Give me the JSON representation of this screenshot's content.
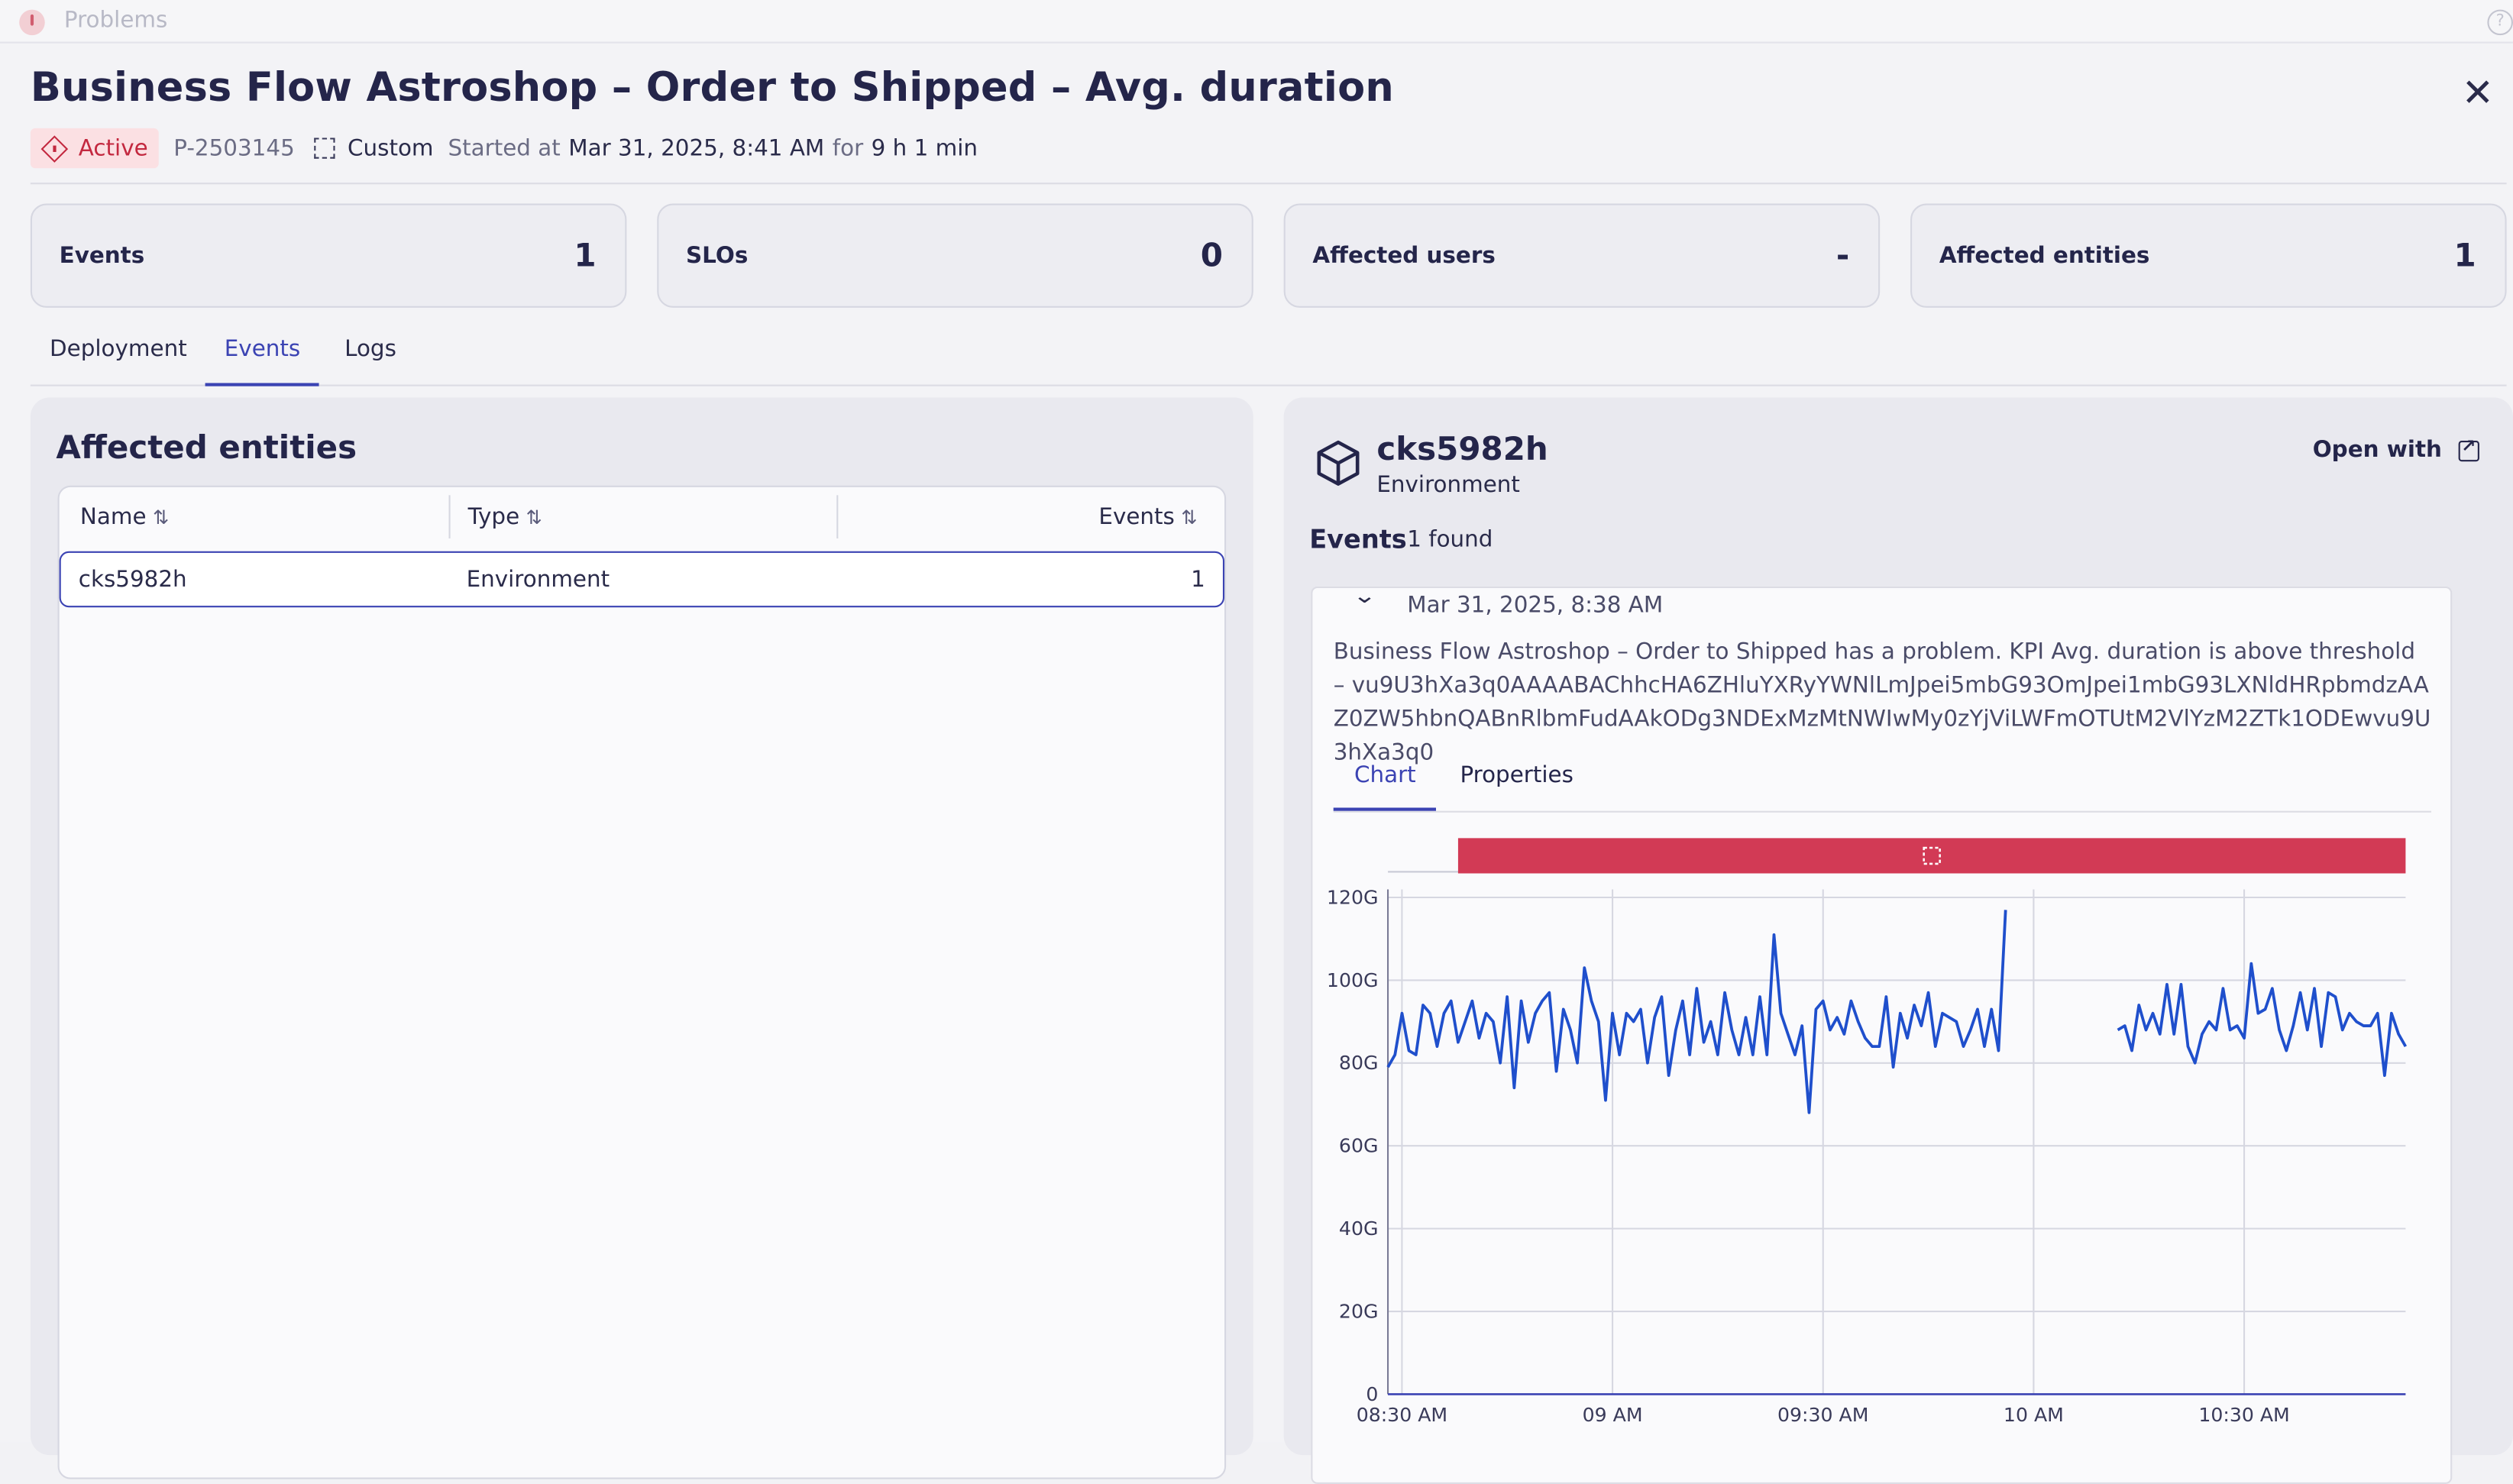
{
  "app": {
    "title": "Problems"
  },
  "problem": {
    "title": "Business Flow Astroshop – Order to Shipped – Avg. duration",
    "status": "Active",
    "id": "P-2503145",
    "category": "Custom",
    "started_label": "Started at",
    "started_at": "Mar 31, 2025, 8:41 AM",
    "duration_label": "for",
    "duration": "9 h 1 min"
  },
  "kpis": [
    {
      "label": "Events",
      "value": "1"
    },
    {
      "label": "SLOs",
      "value": "0"
    },
    {
      "label": "Affected users",
      "value": "-"
    },
    {
      "label": "Affected entities",
      "value": "1"
    }
  ],
  "tabs": [
    "Deployment",
    "Events",
    "Logs"
  ],
  "active_tab": "Events",
  "affected": {
    "title": "Affected entities",
    "columns": [
      "Name",
      "Type",
      "Events"
    ],
    "rows": [
      {
        "name": "cks5982h",
        "type": "Environment",
        "events": "1"
      }
    ]
  },
  "entity": {
    "name": "cks5982h",
    "type": "Environment",
    "open_with": "Open with",
    "events_label": "Events",
    "events_count": "1 found"
  },
  "event": {
    "date": "Mar 31, 2025, 8:38 AM",
    "description": "Business Flow Astroshop – Order to Shipped has a problem. KPI Avg. duration is above threshold – vu9U3hXa3q0AAAABAChhcHA6ZHluYXRyYWNlLmJpei5mbG93OmJpei1mbG93LXNldHRpbmdzAAZ0ZW5hbnQABnRlbmFudAAkODg3NDExMzMtNWIwMy0zYjViLWFmOTUtM2VlYzM2ZTk1ODEwvu9U3hXa3q0",
    "subtabs": [
      "Chart",
      "Properties"
    ],
    "active_subtab": "Chart"
  },
  "chart_data": {
    "type": "line",
    "title": "",
    "xlabel": "",
    "ylabel": "",
    "ylim": [
      0,
      120
    ],
    "y_ticks": [
      "0",
      "20G",
      "40G",
      "60G",
      "80G",
      "100G",
      "120G"
    ],
    "x_ticks": [
      "08:30 AM",
      "09 AM",
      "09:30 AM",
      "10 AM",
      "10:30 AM"
    ],
    "x_tick_minutes": [
      0,
      30,
      60,
      90,
      120
    ],
    "x_range_minutes": [
      -2,
      143
    ],
    "problem_window_minutes": [
      8,
      143
    ],
    "line_color": "#1f4fcc",
    "band_color": "#d23a55",
    "series": [
      {
        "x": [
          -2,
          -1,
          0,
          1,
          2,
          3,
          4,
          5,
          6,
          7,
          8,
          9,
          10,
          11,
          12,
          13,
          14,
          15,
          16,
          17,
          18,
          19,
          20,
          21,
          22,
          23,
          24,
          25,
          26,
          27,
          28,
          29,
          30,
          31,
          32,
          33,
          34,
          35,
          36,
          37,
          38,
          39,
          40,
          41,
          42,
          43,
          44,
          45,
          46,
          47,
          48,
          49,
          50,
          51,
          52,
          53,
          54,
          55,
          56,
          57,
          58,
          59,
          60,
          61,
          62,
          63,
          64,
          65,
          66,
          67,
          68,
          69,
          70,
          71,
          72,
          73,
          74,
          75,
          76,
          77,
          78,
          79,
          80,
          81,
          82,
          83,
          84,
          85,
          86
        ],
        "values": [
          79,
          82,
          92,
          83,
          82,
          94,
          92,
          84,
          92,
          95,
          85,
          90,
          95,
          86,
          92,
          90,
          80,
          96,
          74,
          95,
          85,
          92,
          95,
          97,
          78,
          93,
          88,
          80,
          103,
          95,
          90,
          71,
          92,
          82,
          92,
          90,
          93,
          80,
          91,
          96,
          77,
          88,
          95,
          82,
          98,
          85,
          90,
          82,
          97,
          88,
          82,
          91,
          82,
          96,
          82,
          111,
          92,
          87,
          82,
          89,
          68,
          93,
          95,
          88,
          91,
          87,
          95,
          90,
          86,
          84,
          84,
          96,
          79,
          92,
          86,
          94,
          89,
          97,
          84,
          92,
          91,
          90,
          84,
          88,
          93,
          84,
          93,
          83,
          117
        ]
      },
      {
        "x": [
          102,
          103,
          104,
          105,
          106,
          107,
          108,
          109,
          110,
          111,
          112,
          113,
          114,
          115,
          116,
          117,
          118,
          119,
          120,
          121,
          122,
          123,
          124,
          125,
          126,
          127,
          128,
          129,
          130,
          131,
          132,
          133,
          134,
          135,
          136,
          137,
          138,
          139,
          140,
          141,
          142,
          143
        ],
        "values": [
          88,
          89,
          83,
          94,
          88,
          92,
          87,
          99,
          87,
          99,
          84,
          80,
          87,
          90,
          88,
          98,
          88,
          89,
          86,
          104,
          92,
          93,
          98,
          88,
          83,
          89,
          97,
          88,
          98,
          84,
          97,
          96,
          88,
          92,
          90,
          89,
          89,
          92,
          77,
          92,
          87,
          84
        ]
      }
    ]
  }
}
